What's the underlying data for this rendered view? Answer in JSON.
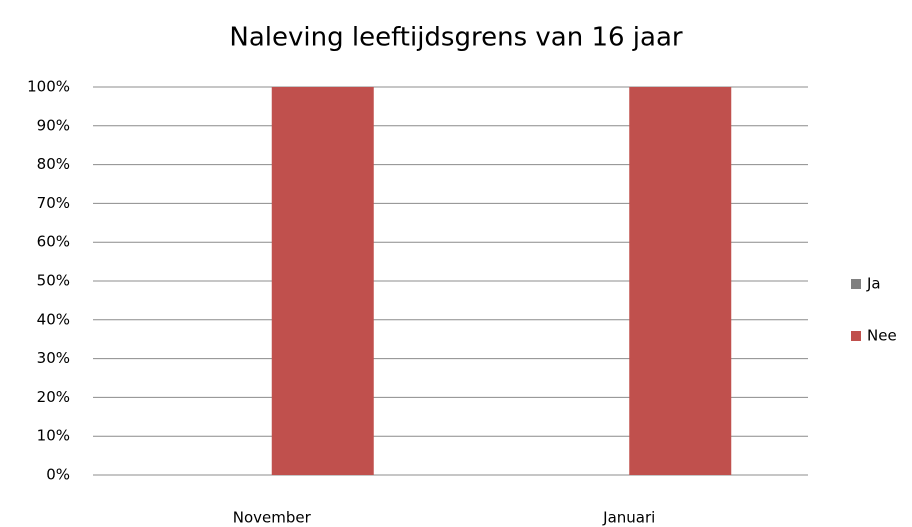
{
  "chart_data": {
    "type": "bar",
    "title": "Naleving leeftijdsgrens van 16 jaar",
    "categories": [
      "November",
      "Januari"
    ],
    "series": [
      {
        "name": "Ja",
        "color": "#808080",
        "values": [
          0,
          0
        ]
      },
      {
        "name": "Nee",
        "color": "#c0504d",
        "values": [
          100,
          100
        ]
      }
    ],
    "ylim": [
      0,
      100
    ],
    "yticks": [
      {
        "value": 0,
        "label": "0%"
      },
      {
        "value": 10,
        "label": "10%"
      },
      {
        "value": 20,
        "label": "20%"
      },
      {
        "value": 30,
        "label": "30%"
      },
      {
        "value": 40,
        "label": "40%"
      },
      {
        "value": 50,
        "label": "50%"
      },
      {
        "value": 60,
        "label": "60%"
      },
      {
        "value": 70,
        "label": "70%"
      },
      {
        "value": 80,
        "label": "80%"
      },
      {
        "value": 90,
        "label": "90%"
      },
      {
        "value": 100,
        "label": "100%"
      }
    ],
    "grid": true,
    "legend": "right"
  }
}
